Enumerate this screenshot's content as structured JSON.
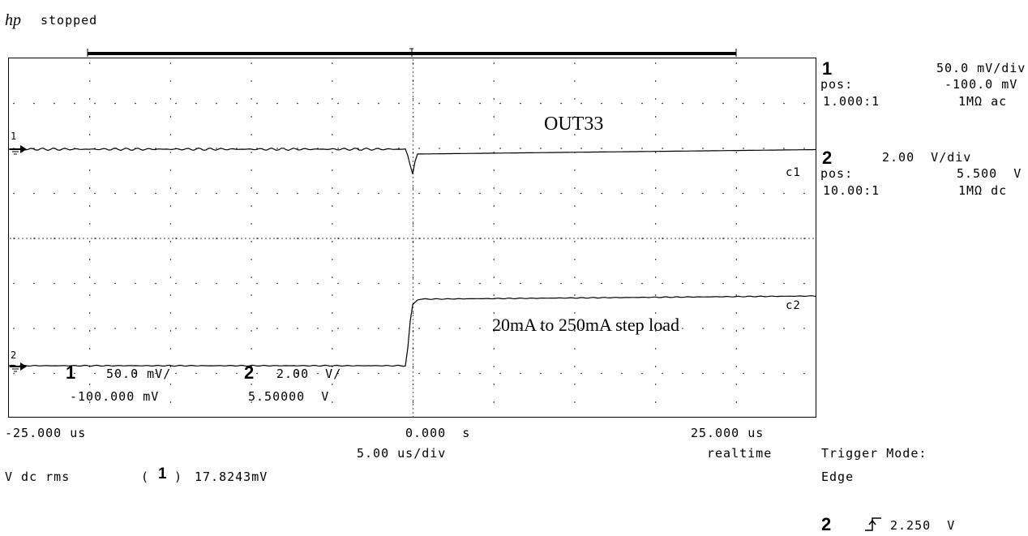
{
  "header": {
    "logo": "hp",
    "status": "stopped"
  },
  "waveform": {
    "title": "OUT33",
    "annotation": "20mA to 250mA step load",
    "c1_label": "c1",
    "c2_label": "c2"
  },
  "channels": [
    {
      "number": "1",
      "scale": "50.0 mV/div",
      "pos_label": "pos:",
      "pos_value": "-100.0 mV",
      "probe": "1.000:1",
      "coupling": "1MΩ ac",
      "overlay_scale": "50.0 mV/",
      "overlay_offset": "-100.000 mV"
    },
    {
      "number": "2",
      "scale": "2.00  V/div",
      "pos_label": "pos:",
      "pos_value": "5.500  V",
      "probe": "10.00:1",
      "coupling": "1MΩ dc",
      "overlay_scale": "2.00  V/",
      "overlay_offset": "5.50000  V"
    }
  ],
  "timebase": {
    "left": "-25.000 us",
    "center": "0.000  s",
    "right": "25.000 us",
    "per_div": "5.00 us/div",
    "acq_mode": "realtime"
  },
  "measurement": {
    "label": "V dc rms",
    "channel": "1",
    "value": "17.8243mV"
  },
  "trigger": {
    "mode_label": "Trigger Mode:",
    "mode": "Edge",
    "channel": "2",
    "level": "2.250  V",
    "slope_icon": "rising-edge-icon"
  },
  "colors": {
    "trace": "#000000",
    "background": "#ffffff"
  }
}
